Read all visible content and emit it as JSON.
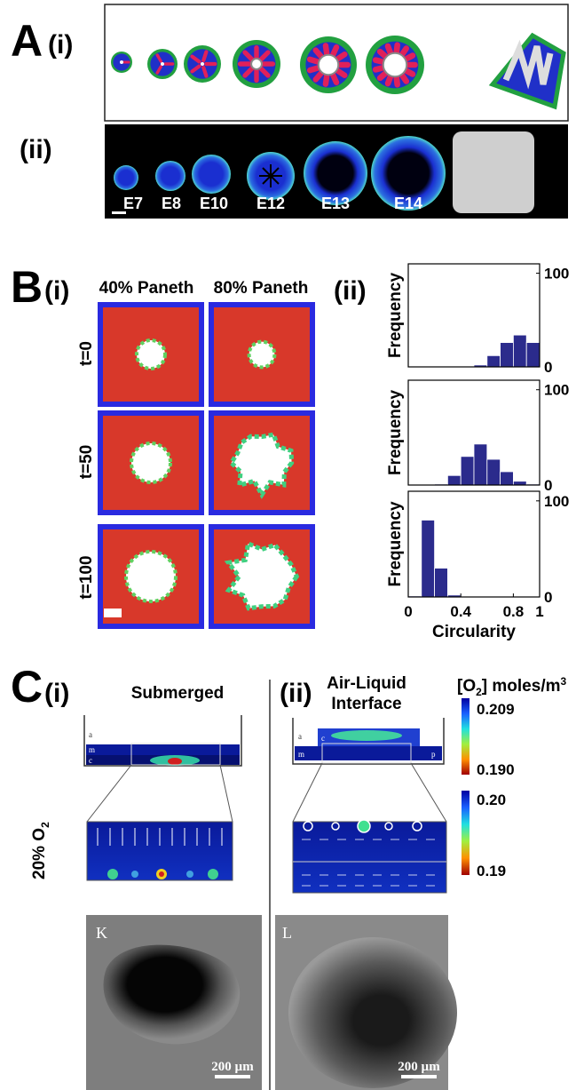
{
  "figure": {
    "panel_a": {
      "label": "A",
      "row_labels": [
        "(i)",
        "(ii)"
      ],
      "stages": [
        "E7",
        "E8",
        "E10",
        "E12",
        "E13",
        "E14"
      ]
    },
    "panel_b": {
      "label": "B",
      "sub_labels": [
        "(i)",
        "(ii)"
      ],
      "columns": [
        "40% Paneth",
        "80% Paneth"
      ],
      "rows": [
        "t=0",
        "t=50",
        "t=100"
      ]
    },
    "panel_c": {
      "label": "C",
      "sub_labels": [
        "(i)",
        "(ii)"
      ],
      "condition_i": "Submerged",
      "condition_ii": [
        "Air-Liquid",
        "Interface"
      ],
      "oxygen_label": [
        "[O",
        "2",
        "] moles/m",
        "3"
      ],
      "colorbar_top": [
        "0.209",
        "0.190"
      ],
      "colorbar_bottom": [
        "0.20",
        "0.19"
      ],
      "side_label": [
        "20% O",
        "2"
      ],
      "layers_i": [
        "a",
        "m",
        "c"
      ],
      "layers_ii": [
        "a",
        "c",
        "m",
        "p"
      ],
      "micrographs": [
        {
          "label": "K",
          "scale": "200 µm"
        },
        {
          "label": "L",
          "scale": "200 µm"
        }
      ]
    }
  },
  "chart_data": [
    {
      "type": "histogram",
      "ylabel": "Frequency",
      "color": "#2b2b8c",
      "bins": [
        0,
        0.1,
        0.2,
        0.3,
        0.4,
        0.5,
        0.6,
        0.7,
        0.8,
        0.9,
        1
      ],
      "values": [
        0,
        0,
        0,
        0,
        0,
        2,
        12,
        26,
        34,
        26
      ],
      "xlim": [
        0,
        1
      ],
      "ylim": [
        0,
        110
      ],
      "yticks": [
        0,
        100
      ]
    },
    {
      "type": "histogram",
      "ylabel": "Frequency",
      "color": "#2b2b8c",
      "bins": [
        0,
        0.1,
        0.2,
        0.3,
        0.4,
        0.5,
        0.6,
        0.7,
        0.8,
        0.9,
        1
      ],
      "values": [
        0,
        0,
        1,
        10,
        30,
        43,
        27,
        14,
        4,
        1
      ],
      "xlim": [
        0,
        1
      ],
      "ylim": [
        0,
        110
      ],
      "yticks": [
        0,
        100
      ]
    },
    {
      "type": "histogram",
      "ylabel": "Frequency",
      "color": "#2b2b8c",
      "xlabel": "Circularity",
      "bins": [
        0,
        0.1,
        0.2,
        0.3,
        0.4,
        0.5,
        0.6,
        0.7,
        0.8,
        0.9,
        1
      ],
      "values": [
        1,
        80,
        30,
        2,
        0,
        0,
        0,
        0,
        0,
        0
      ],
      "xlim": [
        0,
        1
      ],
      "ylim": [
        0,
        110
      ],
      "yticks": [
        0,
        100
      ],
      "xticks": [
        0,
        0.4,
        0.8,
        1
      ]
    }
  ]
}
